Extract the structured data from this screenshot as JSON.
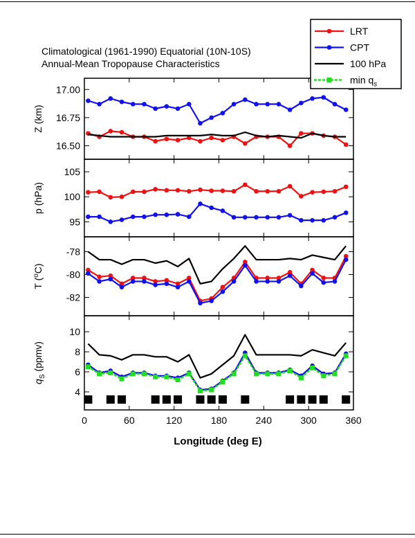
{
  "chart_data": {
    "type": "line",
    "title": [
      "Climatological (1961-1990) Equatorial (10N-10S)",
      "Annual-Mean Tropopause Characteristics"
    ],
    "xlabel": "Longitude (deg E)",
    "xlim": [
      0,
      360
    ],
    "xticks": [
      "0",
      "60",
      "120",
      "180",
      "240",
      "300",
      "360"
    ],
    "legend": {
      "placement": "top-right",
      "entries": [
        {
          "label": "LRT",
          "color": "#ee1111",
          "style": "line-marker"
        },
        {
          "label": "CPT",
          "color": "#1111ee",
          "style": "line-marker"
        },
        {
          "label": "100 hPa",
          "color": "#000000",
          "style": "line"
        },
        {
          "label": "min q",
          "sub": "s",
          "color": "#22dd22",
          "style": "dotted-marker"
        }
      ]
    },
    "x": [
      5,
      20,
      35,
      50,
      65,
      80,
      95,
      110,
      125,
      140,
      155,
      170,
      185,
      200,
      215,
      230,
      245,
      260,
      275,
      290,
      305,
      320,
      335,
      350
    ],
    "panels": [
      {
        "name": "Z",
        "ylabel": "Z (km)",
        "ylim": [
          16.38,
          17.1
        ],
        "yticks": [
          16.5,
          16.75,
          17.0
        ],
        "ytick_labels": [
          "16.50",
          "16.75",
          "17.00"
        ],
        "series": [
          {
            "name": "LRT",
            "color": "#ee1111",
            "marker": "circle",
            "values": [
              16.61,
              16.58,
              16.63,
              16.62,
              16.58,
              16.58,
              16.54,
              16.56,
              16.55,
              16.57,
              16.54,
              16.57,
              16.55,
              16.58,
              16.52,
              16.58,
              16.58,
              16.58,
              16.5,
              16.61,
              16.61,
              16.59,
              16.58,
              16.51
            ]
          },
          {
            "name": "CPT",
            "color": "#1111ee",
            "marker": "circle",
            "values": [
              16.9,
              16.87,
              16.92,
              16.89,
              16.87,
              16.87,
              16.83,
              16.85,
              16.83,
              16.87,
              16.7,
              16.75,
              16.79,
              16.87,
              16.91,
              16.87,
              16.87,
              16.87,
              16.82,
              16.88,
              16.92,
              16.93,
              16.87,
              16.82
            ]
          },
          {
            "name": "100 hPa",
            "color": "#000000",
            "marker": "none",
            "values": [
              16.6,
              16.59,
              16.58,
              16.58,
              16.58,
              16.58,
              16.58,
              16.59,
              16.59,
              16.59,
              16.59,
              16.6,
              16.59,
              16.59,
              16.62,
              16.59,
              16.58,
              16.59,
              16.58,
              16.57,
              16.61,
              16.59,
              16.58,
              16.58
            ]
          }
        ]
      },
      {
        "name": "p",
        "ylabel": "p (hPa)",
        "ylim": [
          92,
          107.5
        ],
        "yticks": [
          95,
          100,
          105
        ],
        "ytick_labels": [
          "95",
          "100",
          "105"
        ],
        "series": [
          {
            "name": "LRT",
            "color": "#ee1111",
            "marker": "circle",
            "values": [
              100.9,
              101.0,
              99.9,
              100.0,
              101.0,
              101.0,
              101.5,
              101.3,
              101.3,
              101.1,
              101.4,
              101.2,
              101.2,
              101.1,
              102.4,
              101.1,
              101.1,
              101.1,
              102.1,
              100.1,
              100.9,
              101.0,
              101.1,
              102.0
            ]
          },
          {
            "name": "CPT",
            "color": "#1111ee",
            "marker": "circle",
            "values": [
              96.0,
              96.0,
              95.0,
              95.4,
              96.0,
              96.0,
              96.4,
              96.4,
              96.5,
              96.0,
              98.6,
              97.8,
              97.2,
              95.9,
              95.9,
              95.9,
              95.9,
              95.9,
              96.3,
              95.3,
              95.3,
              95.3,
              95.9,
              96.8
            ]
          }
        ]
      },
      {
        "name": "T",
        "ylabel": "T (",
        "ylabel_sup": "o",
        "ylabel_tail": "C)",
        "ylim": [
          -83.6,
          -76.7
        ],
        "yticks": [
          -82,
          -80,
          -78
        ],
        "ytick_labels": [
          "-82",
          "-80",
          "-78"
        ],
        "series": [
          {
            "name": "100 hPa",
            "color": "#000000",
            "marker": "none",
            "values": [
              -78.0,
              -78.7,
              -78.7,
              -79.1,
              -78.7,
              -78.7,
              -79.0,
              -78.8,
              -79.3,
              -78.6,
              -80.8,
              -80.6,
              -79.5,
              -78.6,
              -77.5,
              -78.7,
              -78.7,
              -78.7,
              -78.6,
              -78.7,
              -78.3,
              -78.5,
              -78.7,
              -77.5
            ]
          },
          {
            "name": "LRT",
            "color": "#ee1111",
            "marker": "circle",
            "values": [
              -79.6,
              -80.2,
              -80.1,
              -80.8,
              -80.3,
              -80.3,
              -80.6,
              -80.5,
              -80.8,
              -80.3,
              -82.3,
              -82.1,
              -81.1,
              -80.3,
              -78.9,
              -80.3,
              -80.3,
              -80.3,
              -79.8,
              -80.8,
              -79.6,
              -80.3,
              -80.3,
              -78.4
            ]
          },
          {
            "name": "CPT",
            "color": "#1111ee",
            "marker": "circle",
            "values": [
              -79.9,
              -80.6,
              -80.4,
              -81.1,
              -80.6,
              -80.6,
              -80.9,
              -80.8,
              -81.1,
              -80.6,
              -82.5,
              -82.3,
              -81.5,
              -80.6,
              -79.2,
              -80.6,
              -80.6,
              -80.6,
              -80.1,
              -81.0,
              -79.9,
              -80.7,
              -80.6,
              -78.7
            ]
          }
        ]
      },
      {
        "name": "qs",
        "ylabel": "q",
        "ylabel_sub": "S",
        "ylabel_tail": " (ppmv)",
        "ylim": [
          2.2,
          11.6
        ],
        "yticks": [
          4,
          6,
          8,
          10
        ],
        "ytick_labels": [
          "4",
          "6",
          "8",
          "10"
        ],
        "series": [
          {
            "name": "100 hPa",
            "color": "#000000",
            "marker": "none",
            "values": [
              8.8,
              7.7,
              7.6,
              7.2,
              7.7,
              7.7,
              7.5,
              7.5,
              7.0,
              7.7,
              5.4,
              5.8,
              6.7,
              7.6,
              9.7,
              7.7,
              7.7,
              7.7,
              7.7,
              7.6,
              8.2,
              7.9,
              7.6,
              8.9
            ]
          },
          {
            "name": "LRT",
            "color": "#ee1111",
            "marker": "circle",
            "values": [
              6.7,
              5.9,
              6.1,
              5.5,
              5.9,
              5.9,
              5.6,
              5.6,
              5.4,
              5.9,
              4.2,
              4.3,
              5.1,
              5.9,
              7.9,
              5.9,
              5.9,
              5.9,
              6.2,
              5.6,
              6.6,
              5.8,
              5.9,
              7.8
            ]
          },
          {
            "name": "CPT",
            "color": "#1111ee",
            "marker": "circle",
            "values": [
              6.7,
              5.9,
              6.1,
              5.5,
              5.9,
              5.9,
              5.6,
              5.6,
              5.4,
              5.9,
              4.2,
              4.3,
              5.1,
              5.9,
              7.9,
              5.9,
              5.9,
              5.9,
              6.2,
              5.6,
              6.6,
              5.8,
              5.9,
              7.8
            ]
          },
          {
            "name": "min qs",
            "color": "#22dd22",
            "marker": "square",
            "dotted": true,
            "values": [
              6.5,
              5.8,
              5.9,
              5.3,
              5.8,
              5.8,
              5.5,
              5.5,
              5.2,
              5.8,
              4.1,
              4.2,
              5.0,
              5.8,
              7.6,
              5.8,
              5.8,
              5.8,
              6.1,
              5.4,
              6.4,
              5.6,
              5.8,
              7.6
            ]
          }
        ],
        "station_markers_x": [
          5,
          35,
          50,
          95,
          110,
          125,
          155,
          170,
          185,
          215,
          275,
          290,
          305,
          320,
          350
        ]
      }
    ]
  }
}
